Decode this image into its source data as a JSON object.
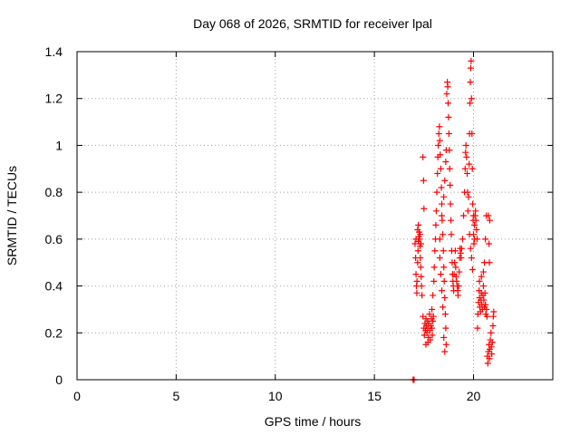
{
  "chart_data": {
    "type": "scatter",
    "title": "Day 068 of 2026, SRMTID for receiver lpal",
    "xlabel": "GPS time / hours",
    "ylabel": "SRMTID / TECUs",
    "xlim": [
      0,
      24
    ],
    "ylim": [
      0,
      1.4
    ],
    "xticks": [
      0,
      5,
      10,
      15,
      20
    ],
    "yticks": [
      0,
      0.2,
      0.4,
      0.6,
      0.8,
      1,
      1.2,
      1.4
    ],
    "xtick_labels": [
      "0",
      "5",
      "10",
      "15",
      "20"
    ],
    "ytick_labels": [
      "0",
      "0.2",
      "0.4",
      "0.6",
      "0.8",
      "1",
      "1.2",
      "1.4"
    ],
    "grid": true,
    "series": [
      {
        "name": "SRMTID",
        "color": "#ff0000",
        "marker": "+",
        "points": [
          [
            16.95,
            0.0
          ],
          [
            17.0,
            0.0
          ],
          [
            17.05,
            0.58
          ],
          [
            17.08,
            0.52
          ],
          [
            17.1,
            0.45
          ],
          [
            17.12,
            0.4
          ],
          [
            17.14,
            0.37
          ],
          [
            17.15,
            0.42
          ],
          [
            17.18,
            0.5
          ],
          [
            17.2,
            0.55
          ],
          [
            17.22,
            0.59
          ],
          [
            17.24,
            0.61
          ],
          [
            17.26,
            0.63
          ],
          [
            17.28,
            0.6
          ],
          [
            17.3,
            0.57
          ],
          [
            17.32,
            0.52
          ],
          [
            17.34,
            0.48
          ],
          [
            17.36,
            0.44
          ],
          [
            17.38,
            0.4
          ],
          [
            17.4,
            0.36
          ],
          [
            17.1,
            0.6
          ],
          [
            17.18,
            0.64
          ],
          [
            17.22,
            0.66
          ],
          [
            17.3,
            0.62
          ],
          [
            17.35,
            0.58
          ],
          [
            17.45,
            0.95
          ],
          [
            17.48,
            0.85
          ],
          [
            17.5,
            0.73
          ],
          [
            17.45,
            0.27
          ],
          [
            17.5,
            0.22
          ],
          [
            17.52,
            0.19
          ],
          [
            17.55,
            0.24
          ],
          [
            17.58,
            0.21
          ],
          [
            17.6,
            0.26
          ],
          [
            17.62,
            0.23
          ],
          [
            17.65,
            0.2
          ],
          [
            17.68,
            0.25
          ],
          [
            17.7,
            0.22
          ],
          [
            17.72,
            0.18
          ],
          [
            17.75,
            0.24
          ],
          [
            17.78,
            0.28
          ],
          [
            17.8,
            0.21
          ],
          [
            17.82,
            0.17
          ],
          [
            17.85,
            0.23
          ],
          [
            17.88,
            0.26
          ],
          [
            17.9,
            0.22
          ],
          [
            17.92,
            0.19
          ],
          [
            17.95,
            0.25
          ],
          [
            17.98,
            0.27
          ],
          [
            17.6,
            0.15
          ],
          [
            17.7,
            0.16
          ],
          [
            17.9,
            0.3
          ],
          [
            17.95,
            0.36
          ],
          [
            18.0,
            0.42
          ],
          [
            18.02,
            0.48
          ],
          [
            18.05,
            0.55
          ],
          [
            18.08,
            0.6
          ],
          [
            18.1,
            0.66
          ],
          [
            18.12,
            0.72
          ],
          [
            18.15,
            0.8
          ],
          [
            18.18,
            0.88
          ],
          [
            18.2,
            0.95
          ],
          [
            18.22,
            1.0
          ],
          [
            18.25,
            1.05
          ],
          [
            18.28,
            1.08
          ],
          [
            18.3,
            1.02
          ],
          [
            18.32,
            0.96
          ],
          [
            18.35,
            0.9
          ],
          [
            18.38,
            0.82
          ],
          [
            18.4,
            0.75
          ],
          [
            18.42,
            0.68
          ],
          [
            18.45,
            0.62
          ],
          [
            18.48,
            0.55
          ],
          [
            18.5,
            0.48
          ],
          [
            18.52,
            0.42
          ],
          [
            18.55,
            0.35
          ],
          [
            18.58,
            0.28
          ],
          [
            18.6,
            0.22
          ],
          [
            18.62,
            0.15
          ],
          [
            18.55,
            0.12
          ],
          [
            18.5,
            0.18
          ],
          [
            18.3,
            0.52
          ],
          [
            18.35,
            0.45
          ],
          [
            18.4,
            0.38
          ],
          [
            18.45,
            0.31
          ],
          [
            18.3,
            0.6
          ],
          [
            18.4,
            0.7
          ],
          [
            18.5,
            0.78
          ],
          [
            18.55,
            0.85
          ],
          [
            18.6,
            0.93
          ],
          [
            18.62,
            0.98
          ],
          [
            18.65,
            1.22
          ],
          [
            18.68,
            1.27
          ],
          [
            18.7,
            1.25
          ],
          [
            18.72,
            1.18
          ],
          [
            18.74,
            1.12
          ],
          [
            18.76,
            1.05
          ],
          [
            18.78,
            0.98
          ],
          [
            18.8,
            0.9
          ],
          [
            18.82,
            0.83
          ],
          [
            18.84,
            0.75
          ],
          [
            18.86,
            0.68
          ],
          [
            18.88,
            0.62
          ],
          [
            18.9,
            0.55
          ],
          [
            18.92,
            0.5
          ],
          [
            18.94,
            0.45
          ],
          [
            18.96,
            0.42
          ],
          [
            18.98,
            0.4
          ],
          [
            19.0,
            0.38
          ],
          [
            19.02,
            0.45
          ],
          [
            19.05,
            0.5
          ],
          [
            19.08,
            0.55
          ],
          [
            19.1,
            0.48
          ],
          [
            19.12,
            0.44
          ],
          [
            19.15,
            0.42
          ],
          [
            19.18,
            0.4
          ],
          [
            19.2,
            0.38
          ],
          [
            19.22,
            0.36
          ],
          [
            19.25,
            0.4
          ],
          [
            19.28,
            0.46
          ],
          [
            19.3,
            0.52
          ],
          [
            19.32,
            0.56
          ],
          [
            19.35,
            0.54
          ],
          [
            19.38,
            0.52
          ],
          [
            19.4,
            0.56
          ],
          [
            19.45,
            0.6
          ],
          [
            19.5,
            0.7
          ],
          [
            19.55,
            0.8
          ],
          [
            19.58,
            0.9
          ],
          [
            19.6,
            0.97
          ],
          [
            19.62,
            1.0
          ],
          [
            19.65,
            0.95
          ],
          [
            19.68,
            0.88
          ],
          [
            19.7,
            0.8
          ],
          [
            19.72,
            0.72
          ],
          [
            19.75,
            0.78
          ],
          [
            19.78,
            0.92
          ],
          [
            19.8,
            1.05
          ],
          [
            19.82,
            1.18
          ],
          [
            19.84,
            1.27
          ],
          [
            19.86,
            1.33
          ],
          [
            19.88,
            1.36
          ],
          [
            19.9,
            1.2
          ],
          [
            19.92,
            1.05
          ],
          [
            19.94,
            0.9
          ],
          [
            19.96,
            0.75
          ],
          [
            19.98,
            0.68
          ],
          [
            20.0,
            0.62
          ],
          [
            20.02,
            0.58
          ],
          [
            20.05,
            0.66
          ],
          [
            20.08,
            0.7
          ],
          [
            20.1,
            0.72
          ],
          [
            20.12,
            0.68
          ],
          [
            20.15,
            0.64
          ],
          [
            20.18,
            0.6
          ],
          [
            19.8,
            0.62
          ],
          [
            19.85,
            0.56
          ],
          [
            19.9,
            0.52
          ],
          [
            19.95,
            0.47
          ],
          [
            20.0,
            0.7
          ],
          [
            20.05,
            0.6
          ],
          [
            20.2,
            0.22
          ],
          [
            20.22,
            0.28
          ],
          [
            20.25,
            0.33
          ],
          [
            20.28,
            0.38
          ],
          [
            20.3,
            0.35
          ],
          [
            20.32,
            0.31
          ],
          [
            20.35,
            0.29
          ],
          [
            20.38,
            0.34
          ],
          [
            20.4,
            0.37
          ],
          [
            20.42,
            0.32
          ],
          [
            20.45,
            0.3
          ],
          [
            20.48,
            0.36
          ],
          [
            20.5,
            0.4
          ],
          [
            20.52,
            0.34
          ],
          [
            20.55,
            0.31
          ],
          [
            20.58,
            0.37
          ],
          [
            20.6,
            0.32
          ],
          [
            20.62,
            0.28
          ],
          [
            20.65,
            0.3
          ],
          [
            20.68,
            0.27
          ],
          [
            20.3,
            0.42
          ],
          [
            20.4,
            0.44
          ],
          [
            20.5,
            0.46
          ],
          [
            20.55,
            0.5
          ],
          [
            20.6,
            0.6
          ],
          [
            20.65,
            0.7
          ],
          [
            20.7,
            0.1
          ],
          [
            20.72,
            0.07
          ],
          [
            20.75,
            0.12
          ],
          [
            20.78,
            0.15
          ],
          [
            20.8,
            0.09
          ],
          [
            20.82,
            0.13
          ],
          [
            20.85,
            0.17
          ],
          [
            20.88,
            0.2
          ],
          [
            20.9,
            0.14
          ],
          [
            20.92,
            0.11
          ],
          [
            20.95,
            0.16
          ],
          [
            20.98,
            0.23
          ],
          [
            21.0,
            0.27
          ],
          [
            21.02,
            0.29
          ],
          [
            20.8,
            0.5
          ],
          [
            20.78,
            0.58
          ],
          [
            20.75,
            0.7
          ],
          [
            20.82,
            0.68
          ]
        ]
      }
    ]
  }
}
